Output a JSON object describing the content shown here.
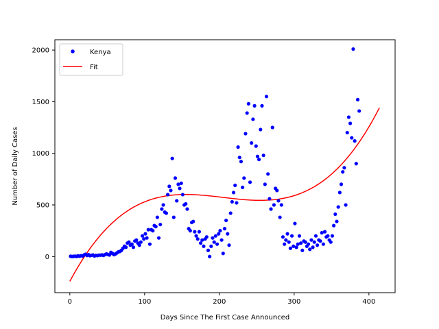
{
  "chart_data": {
    "type": "scatter",
    "xlabel": "Days Since The First Case Announced",
    "ylabel": "Number of Daily Cases",
    "xlim": [
      -20,
      435
    ],
    "ylim": [
      -350,
      2100
    ],
    "xticks": [
      0,
      100,
      200,
      300,
      400
    ],
    "yticks": [
      0,
      500,
      1000,
      1500,
      2000
    ],
    "grid": false,
    "legend_position": "top-left",
    "colors": {
      "scatter": "#0000ff",
      "fit": "#ff0000",
      "axes": "#000000"
    },
    "series": [
      {
        "name": "Kenya",
        "kind": "scatter",
        "points": [
          [
            1,
            3
          ],
          [
            3,
            0
          ],
          [
            5,
            2
          ],
          [
            7,
            4
          ],
          [
            9,
            1
          ],
          [
            11,
            7
          ],
          [
            13,
            3
          ],
          [
            15,
            8
          ],
          [
            17,
            5
          ],
          [
            19,
            15
          ],
          [
            21,
            22
          ],
          [
            23,
            10
          ],
          [
            25,
            18
          ],
          [
            27,
            8
          ],
          [
            29,
            12
          ],
          [
            31,
            15
          ],
          [
            33,
            6
          ],
          [
            35,
            11
          ],
          [
            37,
            9
          ],
          [
            39,
            14
          ],
          [
            41,
            13
          ],
          [
            43,
            16
          ],
          [
            45,
            11
          ],
          [
            47,
            18
          ],
          [
            49,
            25
          ],
          [
            51,
            20
          ],
          [
            53,
            15
          ],
          [
            55,
            40
          ],
          [
            57,
            30
          ],
          [
            59,
            18
          ],
          [
            61,
            25
          ],
          [
            63,
            35
          ],
          [
            65,
            45
          ],
          [
            67,
            50
          ],
          [
            69,
            60
          ],
          [
            71,
            80
          ],
          [
            73,
            100
          ],
          [
            75,
            90
          ],
          [
            77,
            130
          ],
          [
            79,
            140
          ],
          [
            81,
            110
          ],
          [
            83,
            120
          ],
          [
            85,
            90
          ],
          [
            87,
            150
          ],
          [
            89,
            160
          ],
          [
            91,
            130
          ],
          [
            93,
            110
          ],
          [
            95,
            140
          ],
          [
            97,
            200
          ],
          [
            99,
            170
          ],
          [
            101,
            220
          ],
          [
            103,
            180
          ],
          [
            105,
            260
          ],
          [
            107,
            120
          ],
          [
            109,
            260
          ],
          [
            111,
            250
          ],
          [
            113,
            300
          ],
          [
            115,
            290
          ],
          [
            117,
            380
          ],
          [
            119,
            180
          ],
          [
            121,
            310
          ],
          [
            123,
            460
          ],
          [
            125,
            500
          ],
          [
            127,
            430
          ],
          [
            129,
            420
          ],
          [
            131,
            600
          ],
          [
            133,
            680
          ],
          [
            135,
            640
          ],
          [
            137,
            950
          ],
          [
            139,
            380
          ],
          [
            141,
            760
          ],
          [
            143,
            540
          ],
          [
            145,
            700
          ],
          [
            147,
            660
          ],
          [
            149,
            710
          ],
          [
            151,
            600
          ],
          [
            153,
            500
          ],
          [
            155,
            510
          ],
          [
            157,
            460
          ],
          [
            159,
            270
          ],
          [
            161,
            250
          ],
          [
            163,
            330
          ],
          [
            165,
            340
          ],
          [
            167,
            240
          ],
          [
            169,
            200
          ],
          [
            171,
            170
          ],
          [
            173,
            240
          ],
          [
            175,
            130
          ],
          [
            177,
            160
          ],
          [
            179,
            100
          ],
          [
            181,
            170
          ],
          [
            183,
            190
          ],
          [
            185,
            60
          ],
          [
            187,
            0
          ],
          [
            189,
            100
          ],
          [
            191,
            180
          ],
          [
            193,
            140
          ],
          [
            195,
            200
          ],
          [
            197,
            120
          ],
          [
            199,
            220
          ],
          [
            201,
            250
          ],
          [
            203,
            160
          ],
          [
            205,
            30
          ],
          [
            207,
            270
          ],
          [
            209,
            350
          ],
          [
            211,
            220
          ],
          [
            213,
            110
          ],
          [
            215,
            420
          ],
          [
            217,
            530
          ],
          [
            219,
            620
          ],
          [
            221,
            690
          ],
          [
            223,
            520
          ],
          [
            225,
            1060
          ],
          [
            227,
            960
          ],
          [
            229,
            920
          ],
          [
            231,
            670
          ],
          [
            233,
            760
          ],
          [
            235,
            1190
          ],
          [
            237,
            1390
          ],
          [
            239,
            1480
          ],
          [
            241,
            720
          ],
          [
            243,
            1100
          ],
          [
            245,
            1330
          ],
          [
            247,
            1460
          ],
          [
            249,
            1070
          ],
          [
            251,
            970
          ],
          [
            253,
            940
          ],
          [
            255,
            1230
          ],
          [
            257,
            1460
          ],
          [
            259,
            980
          ],
          [
            261,
            700
          ],
          [
            263,
            1550
          ],
          [
            265,
            800
          ],
          [
            267,
            560
          ],
          [
            269,
            460
          ],
          [
            271,
            1250
          ],
          [
            273,
            500
          ],
          [
            275,
            660
          ],
          [
            277,
            640
          ],
          [
            279,
            540
          ],
          [
            281,
            380
          ],
          [
            283,
            500
          ],
          [
            285,
            190
          ],
          [
            287,
            120
          ],
          [
            289,
            160
          ],
          [
            291,
            220
          ],
          [
            293,
            140
          ],
          [
            295,
            80
          ],
          [
            297,
            200
          ],
          [
            299,
            100
          ],
          [
            301,
            320
          ],
          [
            303,
            90
          ],
          [
            305,
            120
          ],
          [
            307,
            200
          ],
          [
            309,
            130
          ],
          [
            311,
            60
          ],
          [
            313,
            150
          ],
          [
            315,
            140
          ],
          [
            317,
            100
          ],
          [
            319,
            120
          ],
          [
            321,
            70
          ],
          [
            323,
            160
          ],
          [
            325,
            90
          ],
          [
            327,
            140
          ],
          [
            329,
            200
          ],
          [
            331,
            110
          ],
          [
            333,
            160
          ],
          [
            335,
            150
          ],
          [
            337,
            230
          ],
          [
            339,
            120
          ],
          [
            341,
            240
          ],
          [
            343,
            190
          ],
          [
            345,
            200
          ],
          [
            347,
            160
          ],
          [
            349,
            140
          ],
          [
            351,
            200
          ],
          [
            353,
            300
          ],
          [
            355,
            410
          ],
          [
            357,
            340
          ],
          [
            359,
            480
          ],
          [
            361,
            620
          ],
          [
            363,
            700
          ],
          [
            365,
            820
          ],
          [
            367,
            860
          ],
          [
            369,
            500
          ],
          [
            371,
            1200
          ],
          [
            373,
            1350
          ],
          [
            375,
            1290
          ],
          [
            377,
            1150
          ],
          [
            379,
            2010
          ],
          [
            381,
            1120
          ],
          [
            383,
            900
          ],
          [
            385,
            1520
          ],
          [
            387,
            1410
          ]
        ]
      },
      {
        "name": "Fit",
        "kind": "line",
        "polynomial_coefficients": [
          -240.5,
          13.61,
          -0.07055,
          0.0001147
        ],
        "x_range": [
          0,
          414
        ]
      }
    ]
  }
}
